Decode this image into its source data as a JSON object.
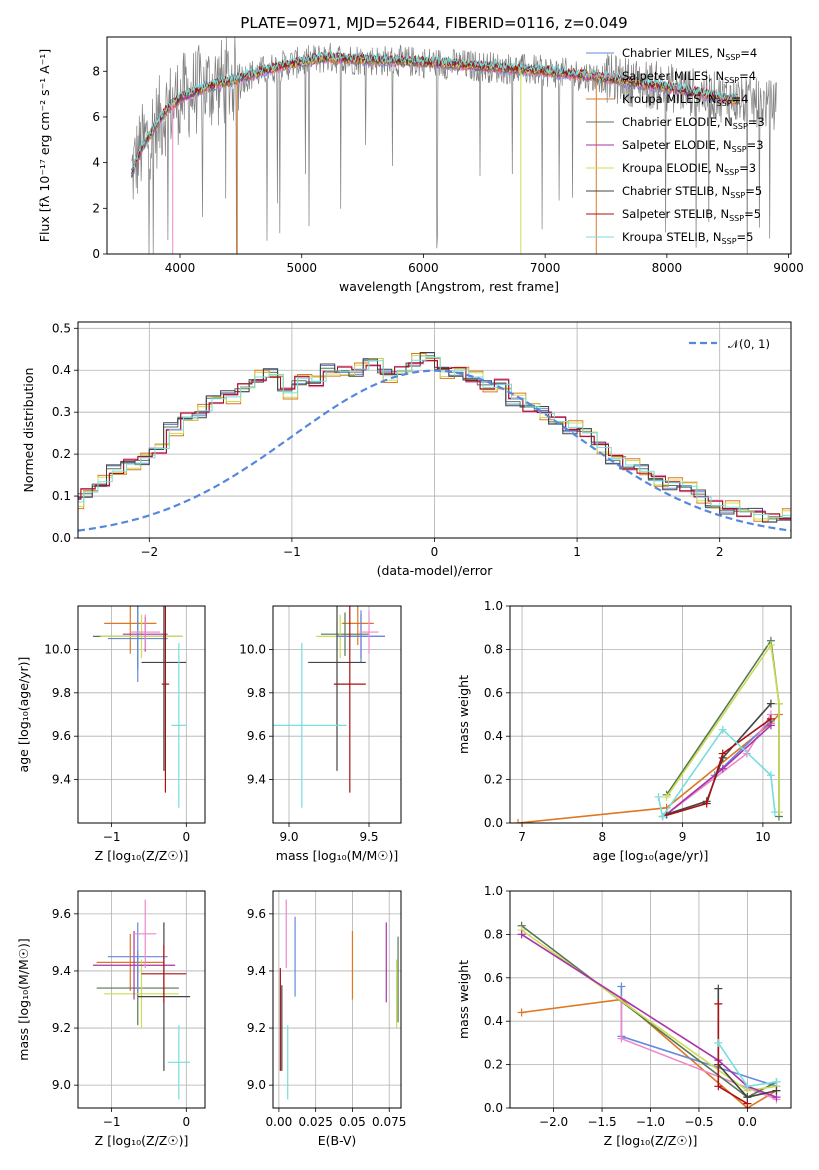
{
  "figure": {
    "title": "PLATE=0971, MJD=52644, FIBERID=0116, z=0.049"
  },
  "chart_data": [
    {
      "id": "spectrum",
      "type": "line",
      "xlabel": "wavelength [Angstrom, rest frame]",
      "ylabel": "Flux [fλ 10⁻¹⁷ erg cm⁻² s⁻¹ A⁻¹]",
      "xlim": [
        3400,
        9020
      ],
      "ylim": [
        0,
        9.5
      ],
      "xticks": [
        4000,
        5000,
        6000,
        7000,
        8000,
        9000
      ],
      "yticks": [
        0,
        2,
        4,
        6,
        8
      ],
      "grid": false,
      "legend": "upper right",
      "data_color": "#808080",
      "data_range": [
        3600,
        8900
      ],
      "continuum": [
        [
          3600,
          3.5
        ],
        [
          3650,
          4.2
        ],
        [
          3700,
          4.8
        ],
        [
          3800,
          5.6
        ],
        [
          3900,
          6.4
        ],
        [
          4000,
          6.8
        ],
        [
          4200,
          7.3
        ],
        [
          4500,
          7.7
        ],
        [
          4800,
          8.2
        ],
        [
          5000,
          8.4
        ],
        [
          5200,
          8.6
        ],
        [
          5500,
          8.5
        ],
        [
          6000,
          8.4
        ],
        [
          6500,
          8.2
        ],
        [
          7000,
          8.0
        ],
        [
          7500,
          7.7
        ],
        [
          8000,
          7.3
        ],
        [
          8500,
          6.8
        ],
        [
          8900,
          6.5
        ]
      ],
      "model_range": [
        3600,
        8600
      ],
      "model_drops": [
        [
          3940,
          "Salpeter MILES"
        ],
        [
          4470,
          "Kroupa MILES"
        ],
        [
          6800,
          "Kroupa ELODIE"
        ],
        [
          7420,
          "Kroupa MILES"
        ]
      ],
      "series": [
        {
          "name": "Chabrier MILES, N",
          "sub": "SSP",
          "suffix": "=4",
          "color": "#6688dd"
        },
        {
          "name": "Salpeter MILES, N",
          "sub": "SSP",
          "suffix": "=4",
          "color": "#ee88cc"
        },
        {
          "name": "Kroupa MILES, N",
          "sub": "SSP",
          "suffix": "=4",
          "color": "#dd7722"
        },
        {
          "name": "Chabrier ELODIE, N",
          "sub": "SSP",
          "suffix": "=3",
          "color": "#557755"
        },
        {
          "name": "Salpeter ELODIE, N",
          "sub": "SSP",
          "suffix": "=3",
          "color": "#aa33aa"
        },
        {
          "name": "Kroupa ELODIE, N",
          "sub": "SSP",
          "suffix": "=3",
          "color": "#ccdd55"
        },
        {
          "name": "Chabrier STELIB, N",
          "sub": "SSP",
          "suffix": "=5",
          "color": "#444444"
        },
        {
          "name": "Salpeter STELIB, N",
          "sub": "SSP",
          "suffix": "=5",
          "color": "#aa1111"
        },
        {
          "name": "Kroupa STELIB, N",
          "sub": "SSP",
          "suffix": "=5",
          "color": "#77dddd"
        }
      ]
    },
    {
      "id": "residuals",
      "type": "histogram",
      "xlabel": "(data-model)/error",
      "ylabel": "Normed distribution",
      "xlim": [
        -2.5,
        2.5
      ],
      "ylim": [
        0,
        0.515
      ],
      "xticks": [
        -2,
        -1,
        0,
        1,
        2
      ],
      "yticks": [
        0.0,
        0.1,
        0.2,
        0.3,
        0.4,
        0.5
      ],
      "grid": true,
      "legend": "upper right",
      "reference": {
        "label": "𝒩(0, 1)",
        "color": "#5588dd",
        "mean": 0,
        "sigma": 1
      },
      "bin_width": 0.1,
      "base_hist": [
        0.02,
        0.03,
        0.03,
        0.04,
        0.05,
        0.05,
        0.11,
        0.07,
        0.08,
        0.09,
        0.11,
        0.13,
        0.16,
        0.18,
        0.19,
        0.21,
        0.26,
        0.29,
        0.3,
        0.33,
        0.34,
        0.36,
        0.38,
        0.39,
        0.35,
        0.38,
        0.37,
        0.4,
        0.4,
        0.4,
        0.42,
        0.39,
        0.4,
        0.42,
        0.43,
        0.4,
        0.4,
        0.38,
        0.36,
        0.37,
        0.33,
        0.31,
        0.3,
        0.28,
        0.26,
        0.25,
        0.22,
        0.19,
        0.17,
        0.16,
        0.14,
        0.13,
        0.12,
        0.1,
        0.08,
        0.07,
        0.06,
        0.06,
        0.05,
        0.05,
        0.04,
        0.04,
        0.03,
        0.03,
        0.025,
        0.02,
        0.02,
        0.02,
        0.015,
        0.01
      ],
      "offsets": [
        0.012,
        -0.01,
        0.02,
        -0.005,
        0.008,
        -0.015,
        0.015,
        -0.008,
        0.004
      ]
    },
    {
      "id": "age_vs_Z",
      "type": "errorbar",
      "xlabel": "Z [log₁₀(Z/Z☉)]",
      "ylabel": "age  [log₁₀(age/yr)]",
      "xlim": [
        -1.45,
        0.25
      ],
      "ylim": [
        9.2,
        10.2
      ],
      "xticks": [
        -1,
        0
      ],
      "yticks": [
        9.4,
        9.6,
        9.8,
        10.0
      ],
      "grid": true,
      "points": [
        {
          "color": "#dd7722",
          "x": -0.75,
          "xerr": 0.35,
          "y": 10.12,
          "yerr": 0.14
        },
        {
          "color": "#557755",
          "x": -0.65,
          "xerr": 0.6,
          "y": 10.06,
          "yerr": 0.15
        },
        {
          "color": "#ccdd55",
          "x": -0.6,
          "xerr": 0.55,
          "y": 10.06,
          "yerr": 0.1
        },
        {
          "color": "#aa33aa",
          "x": -0.55,
          "xerr": 0.3,
          "y": 10.07,
          "yerr": 0.08
        },
        {
          "color": "#6688dd",
          "x": -0.65,
          "xerr": 0.4,
          "y": 10.05,
          "yerr": 0.2
        },
        {
          "color": "#ee88cc",
          "x": -0.55,
          "xerr": 0.2,
          "y": 10.08,
          "yerr": 0.08
        },
        {
          "color": "#444444",
          "x": -0.3,
          "xerr": 0.3,
          "y": 9.94,
          "yerr": 0.5
        },
        {
          "color": "#aa1111",
          "x": -0.28,
          "xerr": 0.05,
          "y": 9.84,
          "yerr": 0.5
        },
        {
          "color": "#77dddd",
          "x": -0.1,
          "xerr": 0.1,
          "y": 9.65,
          "yerr": 0.38
        }
      ]
    },
    {
      "id": "age_vs_mass",
      "type": "errorbar",
      "xlabel": "mass [log₁₀(M/M☉)]",
      "ylabel": "",
      "xlim": [
        8.9,
        9.7
      ],
      "ylim": [
        9.2,
        10.2
      ],
      "xticks": [
        9.0,
        9.5
      ],
      "yticks": [
        9.4,
        9.6,
        9.8,
        10.0
      ],
      "grid": true,
      "points": [
        {
          "color": "#dd7722",
          "x": 9.43,
          "xerr": 0.1,
          "y": 10.12,
          "yerr": 0.1
        },
        {
          "color": "#557755",
          "x": 9.35,
          "xerr": 0.15,
          "y": 10.07,
          "yerr": 0.1
        },
        {
          "color": "#ccdd55",
          "x": 9.32,
          "xerr": 0.15,
          "y": 10.06,
          "yerr": 0.1
        },
        {
          "color": "#aa33aa",
          "x": 9.45,
          "xerr": 0.15,
          "y": 10.06,
          "yerr": 0.1
        },
        {
          "color": "#6688dd",
          "x": 9.45,
          "xerr": 0.15,
          "y": 10.06,
          "yerr": 0.12
        },
        {
          "color": "#ee88cc",
          "x": 9.5,
          "xerr": 0.06,
          "y": 10.08,
          "yerr": 0.1
        },
        {
          "color": "#444444",
          "x": 9.3,
          "xerr": 0.18,
          "y": 9.94,
          "yerr": 0.5
        },
        {
          "color": "#aa1111",
          "x": 9.38,
          "xerr": 0.1,
          "y": 9.84,
          "yerr": 0.5
        },
        {
          "color": "#77dddd",
          "x": 9.08,
          "xerr": 0.28,
          "y": 9.65,
          "yerr": 0.38
        }
      ]
    },
    {
      "id": "weight_vs_age",
      "type": "line",
      "xlabel": "age  [log₁₀(age/yr)]",
      "ylabel": "mass weight",
      "xlim": [
        6.85,
        10.35
      ],
      "ylim": [
        0,
        1
      ],
      "xticks": [
        7,
        8,
        9,
        10
      ],
      "yticks": [
        0.0,
        0.2,
        0.4,
        0.6,
        0.8,
        1.0
      ],
      "grid": true,
      "series": [
        {
          "color": "#dd7722",
          "x": [
            6.95,
            8.8,
            10.1,
            10.2
          ],
          "y": [
            0.0,
            0.07,
            0.46,
            0.5
          ]
        },
        {
          "color": "#6688dd",
          "x": [
            8.8,
            9.4,
            10.1
          ],
          "y": [
            0.04,
            0.22,
            0.47
          ]
        },
        {
          "color": "#ee88cc",
          "x": [
            8.8,
            9.8,
            10.1
          ],
          "y": [
            0.04,
            0.32,
            0.5
          ]
        },
        {
          "color": "#557755",
          "x": [
            8.8,
            10.1,
            10.2,
            10.2
          ],
          "y": [
            0.13,
            0.84,
            0.55,
            0.03
          ]
        },
        {
          "color": "#ccdd55",
          "x": [
            8.8,
            10.1,
            10.2,
            10.2
          ],
          "y": [
            0.12,
            0.82,
            0.55,
            0.05
          ]
        },
        {
          "color": "#aa33aa",
          "x": [
            8.8,
            9.5,
            10.1
          ],
          "y": [
            0.04,
            0.25,
            0.45
          ]
        },
        {
          "color": "#444444",
          "x": [
            8.8,
            9.3,
            9.5,
            10.1
          ],
          "y": [
            0.04,
            0.1,
            0.3,
            0.55
          ]
        },
        {
          "color": "#aa1111",
          "x": [
            8.75,
            9.3,
            9.5,
            10.1
          ],
          "y": [
            0.03,
            0.09,
            0.32,
            0.48
          ]
        },
        {
          "color": "#77dddd",
          "x": [
            8.7,
            8.75,
            9.5,
            10.1,
            10.15
          ],
          "y": [
            0.12,
            0.03,
            0.43,
            0.22,
            0.05
          ]
        }
      ]
    },
    {
      "id": "mass_vs_Z",
      "type": "errorbar",
      "xlabel": "Z [log₁₀(Z/Z☉)]",
      "ylabel": "mass [log₁₀(M/M☉)]",
      "xlim": [
        -1.45,
        0.25
      ],
      "ylim": [
        8.92,
        9.68
      ],
      "xticks": [
        -1,
        0
      ],
      "yticks": [
        9.0,
        9.2,
        9.4,
        9.6
      ],
      "grid": true,
      "points": [
        {
          "color": "#dd7722",
          "x": -0.75,
          "xerr": 0.45,
          "y": 9.43,
          "yerr": 0.1
        },
        {
          "color": "#557755",
          "x": -0.65,
          "xerr": 0.55,
          "y": 9.34,
          "yerr": 0.13
        },
        {
          "color": "#ccdd55",
          "x": -0.6,
          "xerr": 0.5,
          "y": 9.32,
          "yerr": 0.12
        },
        {
          "color": "#aa33aa",
          "x": -0.7,
          "xerr": 0.55,
          "y": 9.42,
          "yerr": 0.12
        },
        {
          "color": "#6688dd",
          "x": -0.65,
          "xerr": 0.4,
          "y": 9.45,
          "yerr": 0.12
        },
        {
          "color": "#ee88cc",
          "x": -0.55,
          "xerr": 0.15,
          "y": 9.53,
          "yerr": 0.12
        },
        {
          "color": "#444444",
          "x": -0.3,
          "xerr": 0.35,
          "y": 9.31,
          "yerr": 0.26
        },
        {
          "color": "#aa1111",
          "x": -0.3,
          "xerr": 0.3,
          "y": 9.39,
          "yerr": 0.1
        },
        {
          "color": "#77dddd",
          "x": -0.1,
          "xerr": 0.15,
          "y": 9.08,
          "yerr": 0.13
        }
      ]
    },
    {
      "id": "mass_vs_EBV",
      "type": "errorbar",
      "xlabel": "E(B-V)",
      "ylabel": "",
      "xlim": [
        -0.004,
        0.083
      ],
      "ylim": [
        8.92,
        9.68
      ],
      "xticks": [
        0.0,
        0.025,
        0.05,
        0.075
      ],
      "xtick_labels": [
        "0.00",
        "0.025",
        "0.05",
        "0.075"
      ],
      "yticks": [
        9.0,
        9.2,
        9.4,
        9.6
      ],
      "grid": true,
      "points": [
        {
          "color": "#aa1111",
          "x": 0.001,
          "xerr": 0,
          "y": 9.23,
          "yerr": 0.18
        },
        {
          "color": "#444444",
          "x": 0.002,
          "xerr": 0,
          "y": 9.2,
          "yerr": 0.15
        },
        {
          "color": "#ee88cc",
          "x": 0.005,
          "xerr": 0,
          "y": 9.53,
          "yerr": 0.12
        },
        {
          "color": "#77dddd",
          "x": 0.006,
          "xerr": 0,
          "y": 9.08,
          "yerr": 0.13
        },
        {
          "color": "#6688dd",
          "x": 0.011,
          "xerr": 0,
          "y": 9.45,
          "yerr": 0.14
        },
        {
          "color": "#dd7722",
          "x": 0.05,
          "xerr": 0,
          "y": 9.42,
          "yerr": 0.12
        },
        {
          "color": "#aa33aa",
          "x": 0.073,
          "xerr": 0,
          "y": 9.43,
          "yerr": 0.14
        },
        {
          "color": "#ccdd55",
          "x": 0.08,
          "xerr": 0,
          "y": 9.32,
          "yerr": 0.12
        },
        {
          "color": "#557755",
          "x": 0.081,
          "xerr": 0,
          "y": 9.37,
          "yerr": 0.15
        }
      ]
    },
    {
      "id": "weight_vs_Z",
      "type": "line",
      "xlabel": "Z [log₁₀(Z/Z☉)]",
      "ylabel": "mass weight",
      "xlim": [
        -2.45,
        0.45
      ],
      "ylim": [
        0,
        1
      ],
      "xticks": [
        -2.0,
        -1.5,
        -1.0,
        -0.5,
        0.0
      ],
      "yticks": [
        0.0,
        0.2,
        0.4,
        0.6,
        0.8,
        1.0
      ],
      "grid": true,
      "series": [
        {
          "color": "#dd7722",
          "x": [
            -2.33,
            -1.3,
            0.0,
            0.3
          ],
          "y": [
            0.44,
            0.5,
            0.0,
            0.08
          ]
        },
        {
          "color": "#6688dd",
          "x": [
            -1.3,
            -1.3,
            0.3
          ],
          "y": [
            0.56,
            0.33,
            0.1
          ]
        },
        {
          "color": "#ee88cc",
          "x": [
            -1.3,
            -1.3,
            0.3
          ],
          "y": [
            0.5,
            0.32,
            0.04
          ]
        },
        {
          "color": "#557755",
          "x": [
            -2.33,
            0.0,
            0.3
          ],
          "y": [
            0.84,
            0.05,
            0.12
          ]
        },
        {
          "color": "#ccdd55",
          "x": [
            -2.33,
            0.0,
            0.3
          ],
          "y": [
            0.82,
            0.08,
            0.1
          ]
        },
        {
          "color": "#aa33aa",
          "x": [
            -2.33,
            -0.3,
            0.0,
            0.3
          ],
          "y": [
            0.8,
            0.22,
            0.1,
            0.05
          ]
        },
        {
          "color": "#444444",
          "x": [
            -0.3,
            -0.3,
            0.0,
            0.3
          ],
          "y": [
            0.55,
            0.2,
            0.05,
            0.08
          ]
        },
        {
          "color": "#aa1111",
          "x": [
            -0.3,
            -0.3,
            0.0
          ],
          "y": [
            0.48,
            0.1,
            0.02
          ]
        },
        {
          "color": "#77dddd",
          "x": [
            -0.3,
            0.0,
            0.3
          ],
          "y": [
            0.3,
            0.1,
            0.12
          ]
        }
      ]
    }
  ]
}
